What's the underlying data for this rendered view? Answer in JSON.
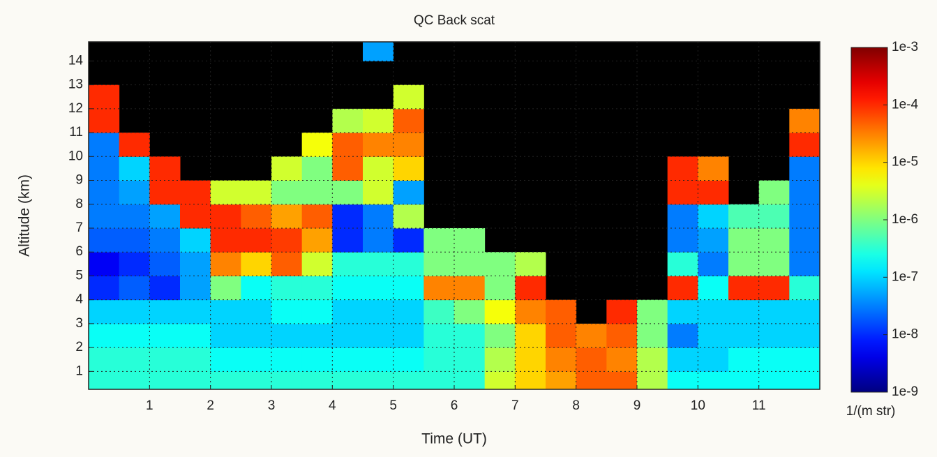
{
  "chart_data": {
    "type": "heatmap",
    "title": "QC Back scat",
    "x_label": "Time (UT)",
    "y_label": "Altitude (km)",
    "colorbar_label": "1/(m str)",
    "log_scale_color": true,
    "grid": true,
    "colormap": "jet",
    "background_color": "#000000",
    "xlim": [
      0,
      12
    ],
    "ylim": [
      0.25,
      14.8
    ],
    "xticks": [
      1,
      2,
      3,
      4,
      5,
      6,
      7,
      8,
      9,
      10,
      11
    ],
    "yticks": [
      1,
      2,
      3,
      4,
      5,
      6,
      7,
      8,
      9,
      10,
      11,
      12,
      13,
      14
    ],
    "clim": [
      1e-09,
      0.001
    ],
    "cticks": [
      {
        "value": 0.001,
        "label": "1e-3"
      },
      {
        "value": 0.0001,
        "label": "1e-4"
      },
      {
        "value": 1e-05,
        "label": "1e-5"
      },
      {
        "value": 1e-06,
        "label": "1e-6"
      },
      {
        "value": 1e-07,
        "label": "1e-7"
      },
      {
        "value": 1e-08,
        "label": "1e-8"
      },
      {
        "value": 1e-09,
        "label": "1e-9"
      }
    ],
    "x": [
      0.25,
      0.75,
      1.25,
      1.75,
      2.25,
      2.75,
      3.25,
      3.75,
      4.25,
      4.75,
      5.25,
      5.75,
      6.25,
      6.75,
      7.25,
      7.75,
      8.25,
      8.75,
      9.25,
      9.75,
      10.25,
      10.75,
      11.25,
      11.75
    ],
    "y": [
      0.5,
      1.5,
      2.5,
      3.5,
      4.5,
      5.5,
      6.5,
      7.5,
      8.5,
      9.5,
      10.5,
      11.5,
      12.5,
      13.5,
      14.5
    ],
    "z": [
      [
        3e-07,
        3e-07,
        2e-07,
        1e-07,
        1e-08,
        5e-09,
        2e-08,
        3e-08,
        3e-08,
        3e-08,
        3e-08,
        0.0001,
        0.0001,
        null,
        null
      ],
      [
        3e-07,
        3e-07,
        2e-07,
        1e-07,
        2e-08,
        1e-08,
        2e-08,
        3e-08,
        5e-08,
        1e-07,
        0.0001,
        null,
        null,
        null,
        null
      ],
      [
        3e-07,
        3e-07,
        2e-07,
        1e-07,
        1e-08,
        2e-08,
        3e-08,
        5e-08,
        0.0001,
        0.0001,
        null,
        null,
        null,
        null,
        null
      ],
      [
        3e-07,
        3e-07,
        2e-07,
        1e-07,
        5e-08,
        5e-08,
        1e-07,
        0.0001,
        0.0001,
        null,
        null,
        null,
        null,
        null,
        null
      ],
      [
        3e-07,
        2e-07,
        1e-07,
        1e-07,
        1e-06,
        3e-05,
        0.0001,
        0.0001,
        3e-06,
        null,
        null,
        null,
        null,
        null,
        null
      ],
      [
        3e-07,
        2e-07,
        1e-07,
        1e-07,
        2e-07,
        1e-05,
        0.0001,
        5e-05,
        3e-06,
        null,
        null,
        null,
        null,
        null,
        null
      ],
      [
        3e-07,
        2e-07,
        1e-07,
        2e-07,
        3e-07,
        5e-05,
        8e-05,
        2e-05,
        1e-06,
        3e-06,
        null,
        null,
        null,
        null,
        null
      ],
      [
        3e-07,
        2e-07,
        1e-07,
        2e-07,
        3e-07,
        3e-06,
        2e-05,
        5e-05,
        1e-06,
        1e-06,
        5e-06,
        null,
        null,
        null,
        null
      ],
      [
        3e-07,
        2e-07,
        1e-07,
        1e-07,
        2e-07,
        3e-07,
        1e-08,
        1e-08,
        1e-06,
        5e-05,
        5e-05,
        2e-06,
        null,
        null,
        null
      ],
      [
        3e-07,
        2e-07,
        1e-07,
        1e-07,
        2e-07,
        3e-07,
        3e-08,
        3e-08,
        3e-06,
        3e-06,
        3e-05,
        3e-06,
        null,
        null,
        5e-08
      ],
      [
        3e-07,
        2e-07,
        1e-07,
        1e-07,
        2e-07,
        3e-07,
        1e-08,
        2e-06,
        5e-08,
        1e-05,
        3e-05,
        5e-05,
        3e-06,
        null,
        null
      ],
      [
        3e-07,
        3e-07,
        3e-07,
        4e-07,
        3e-05,
        1e-06,
        1e-06,
        null,
        null,
        null,
        null,
        null,
        null,
        null,
        null
      ],
      [
        3e-07,
        3e-07,
        3e-07,
        1e-06,
        3e-05,
        1e-06,
        1e-06,
        null,
        null,
        null,
        null,
        null,
        null,
        null,
        null
      ],
      [
        3e-06,
        2e-06,
        1e-06,
        5e-06,
        1e-06,
        1e-06,
        null,
        null,
        null,
        null,
        null,
        null,
        null,
        null,
        null
      ],
      [
        1e-05,
        1e-05,
        1e-05,
        3e-05,
        0.0001,
        2e-06,
        null,
        null,
        null,
        null,
        null,
        null,
        null,
        null,
        null
      ],
      [
        2e-05,
        3e-05,
        5e-05,
        5e-05,
        null,
        null,
        null,
        null,
        null,
        null,
        null,
        null,
        null,
        null,
        null
      ],
      [
        5e-05,
        5e-05,
        3e-05,
        null,
        null,
        null,
        null,
        null,
        null,
        null,
        null,
        null,
        null,
        null,
        null
      ],
      [
        5e-05,
        3e-05,
        5e-05,
        0.0001,
        null,
        null,
        null,
        null,
        null,
        null,
        null,
        null,
        null,
        null,
        null
      ],
      [
        2e-06,
        2e-06,
        1e-06,
        1e-06,
        null,
        null,
        null,
        null,
        null,
        null,
        null,
        null,
        null,
        null,
        null
      ],
      [
        2e-07,
        1e-07,
        3e-08,
        1e-07,
        0.0001,
        3e-07,
        3e-08,
        3e-08,
        0.0001,
        0.0001,
        null,
        null,
        null,
        null,
        null
      ],
      [
        2e-07,
        1e-07,
        1e-07,
        1e-07,
        2e-07,
        3e-08,
        5e-08,
        1e-07,
        0.0001,
        3e-05,
        null,
        null,
        null,
        null,
        null
      ],
      [
        2e-07,
        2e-07,
        1e-07,
        1e-07,
        0.0001,
        1e-06,
        1e-06,
        5e-07,
        null,
        null,
        null,
        null,
        null,
        null,
        null
      ],
      [
        2e-07,
        2e-07,
        1e-07,
        1e-07,
        0.0001,
        1e-06,
        1e-06,
        5e-07,
        1e-06,
        null,
        null,
        null,
        null,
        null,
        null
      ],
      [
        2e-07,
        2e-07,
        1e-07,
        1e-07,
        3e-07,
        3e-08,
        3e-08,
        3e-08,
        3e-08,
        3e-08,
        0.0001,
        3e-05,
        null,
        null,
        null
      ]
    ]
  }
}
